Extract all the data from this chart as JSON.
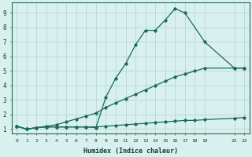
{
  "xlabel": "Humidex (Indice chaleur)",
  "background_color": "#d8f0ee",
  "grid_color": "#b8d8d4",
  "line_color": "#1a6b5a",
  "x_ticks": [
    0,
    1,
    2,
    3,
    4,
    5,
    6,
    7,
    8,
    9,
    10,
    11,
    12,
    13,
    14,
    15,
    16,
    17,
    18,
    19,
    22,
    23
  ],
  "x_tick_labels": [
    "0",
    "1",
    "2",
    "3",
    "4",
    "5",
    "6",
    "7",
    "8",
    "9",
    "10",
    "11",
    "12",
    "13",
    "14",
    "15",
    "16",
    "17",
    "18",
    "19",
    "22",
    "23"
  ],
  "ylim": [
    0.7,
    9.7
  ],
  "xlim": [
    -0.5,
    23.5
  ],
  "yticks": [
    1,
    2,
    3,
    4,
    5,
    6,
    7,
    8,
    9
  ],
  "series1_x": [
    0,
    1,
    2,
    3,
    4,
    5,
    6,
    7,
    8,
    9,
    10,
    11,
    12,
    13,
    14,
    15,
    16,
    17,
    18,
    19,
    22,
    23
  ],
  "series1_y": [
    1.2,
    1.0,
    1.1,
    1.15,
    1.15,
    1.15,
    1.15,
    1.15,
    1.15,
    1.2,
    1.25,
    1.3,
    1.35,
    1.4,
    1.45,
    1.5,
    1.55,
    1.6,
    1.6,
    1.65,
    1.75,
    1.8
  ],
  "series2_x": [
    0,
    1,
    2,
    3,
    4,
    5,
    6,
    7,
    8,
    9,
    10,
    11,
    12,
    13,
    14,
    15,
    16,
    17,
    18,
    19,
    22,
    23
  ],
  "series2_y": [
    1.2,
    1.0,
    1.1,
    1.2,
    1.3,
    1.5,
    1.7,
    1.9,
    2.1,
    2.5,
    2.8,
    3.1,
    3.4,
    3.7,
    4.0,
    4.3,
    4.6,
    4.8,
    5.0,
    5.2,
    5.2,
    5.2
  ],
  "series3_x": [
    0,
    1,
    2,
    3,
    4,
    5,
    6,
    7,
    8,
    9,
    10,
    11,
    12,
    13,
    14,
    15,
    16,
    17,
    19,
    22,
    23
  ],
  "series3_y": [
    1.2,
    1.0,
    1.1,
    1.15,
    1.15,
    1.15,
    1.15,
    1.15,
    1.1,
    3.2,
    4.5,
    5.5,
    6.8,
    7.8,
    7.8,
    8.5,
    9.3,
    9.0,
    7.0,
    5.2,
    5.2
  ]
}
